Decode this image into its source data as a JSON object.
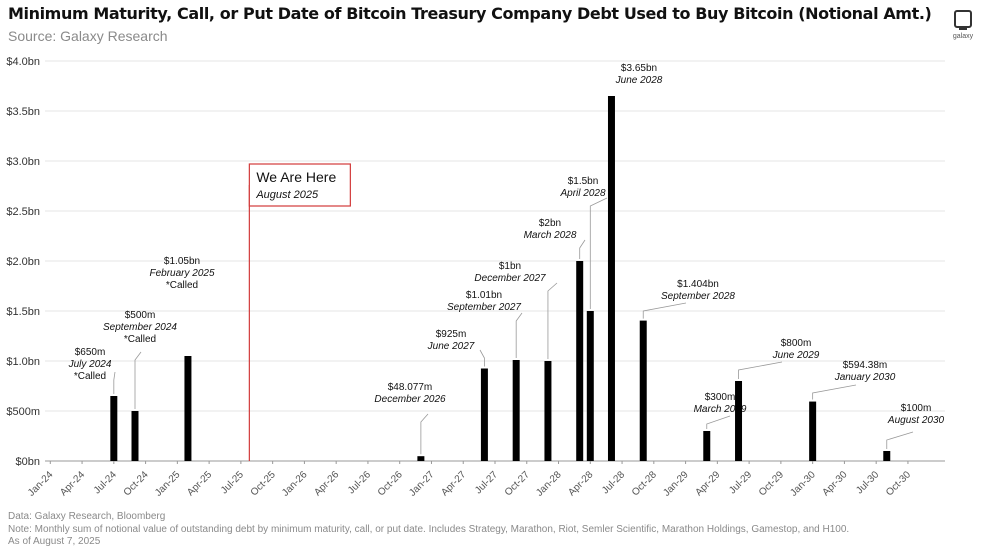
{
  "header": {
    "title": "Minimum Maturity, Call, or Put Date of Bitcoin Treasury Company Debt Used to Buy Bitcoin (Notional Amt.)",
    "source": "Source: Galaxy Research",
    "logo_text": "galaxy"
  },
  "footer": {
    "data_line": "Data: Galaxy Research, Bloomberg",
    "note_line": "Note: Monthly sum of notional value of outstanding debt by minimum maturity, call, or put date. Includes Strategy, Marathon, Riot, Semler Scientific, Marathon Holdings, Gamestop, and H100.",
    "asof_line": "As of August 7, 2025"
  },
  "colors": {
    "bar": "#000000",
    "marker": "#d23a3a",
    "grid": "#e6e6e6",
    "axis_text": "#555555"
  },
  "chart_data": {
    "type": "bar",
    "title": "Minimum Maturity, Call, or Put Date of Bitcoin Treasury Company Debt Used to Buy Bitcoin (Notional Amt.)",
    "xlabel": "",
    "ylabel": "",
    "ylim": [
      0,
      4.0
    ],
    "y_unit": "bn USD",
    "grid": true,
    "x_start": "Jan-24",
    "x_ticks": [
      "Jan-24",
      "Apr-24",
      "Jul-24",
      "Oct-24",
      "Jan-25",
      "Apr-25",
      "Jul-25",
      "Oct-25",
      "Jan-26",
      "Apr-26",
      "Jul-26",
      "Oct-26",
      "Jan-27",
      "Apr-27",
      "Jul-27",
      "Oct-27",
      "Jan-28",
      "Apr-28",
      "Jul-28",
      "Oct-28",
      "Jan-29",
      "Apr-29",
      "Jul-29",
      "Oct-29",
      "Jan-30",
      "Apr-30",
      "Jul-30",
      "Oct-30"
    ],
    "y_ticks": [
      {
        "v": 0,
        "label": "$0bn"
      },
      {
        "v": 0.5,
        "label": "$500m"
      },
      {
        "v": 1.0,
        "label": "$1.0bn"
      },
      {
        "v": 1.5,
        "label": "$1.5bn"
      },
      {
        "v": 2.0,
        "label": "$2.0bn"
      },
      {
        "v": 2.5,
        "label": "$2.5bn"
      },
      {
        "v": 3.0,
        "label": "$3.0bn"
      },
      {
        "v": 3.5,
        "label": "$3.5bn"
      },
      {
        "v": 4.0,
        "label": "$4.0bn"
      }
    ],
    "bars": [
      {
        "date": "July 2024",
        "value": 0.65,
        "label": "$650m",
        "note": "*Called"
      },
      {
        "date": "September 2024",
        "value": 0.5,
        "label": "$500m",
        "note": "*Called"
      },
      {
        "date": "February 2025",
        "value": 1.05,
        "label": "$1.05bn",
        "note": "*Called"
      },
      {
        "date": "December 2026",
        "value": 0.048077,
        "label": "$48.077m"
      },
      {
        "date": "June 2027",
        "value": 0.925,
        "label": "$925m"
      },
      {
        "date": "September 2027",
        "value": 1.01,
        "label": "$1.01bn"
      },
      {
        "date": "December 2027",
        "value": 1.0,
        "label": "$1bn"
      },
      {
        "date": "March 2028",
        "value": 2.0,
        "label": "$2bn"
      },
      {
        "date": "April 2028",
        "value": 1.5,
        "label": "$1.5bn"
      },
      {
        "date": "June 2028",
        "value": 3.65,
        "label": "$3.65bn"
      },
      {
        "date": "September 2028",
        "value": 1.404,
        "label": "$1.404bn"
      },
      {
        "date": "March 2029",
        "value": 0.3,
        "label": "$300m"
      },
      {
        "date": "June 2029",
        "value": 0.8,
        "label": "$800m"
      },
      {
        "date": "January 2030",
        "value": 0.59438,
        "label": "$594.38m"
      },
      {
        "date": "August 2030",
        "value": 0.1,
        "label": "$100m"
      }
    ],
    "annotation": {
      "date": "August 2025",
      "title": "We Are Here",
      "subtitle": "August 2025"
    }
  }
}
